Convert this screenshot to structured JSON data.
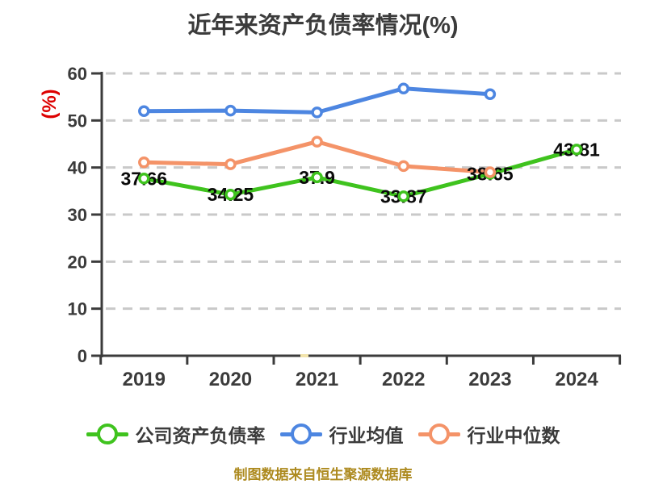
{
  "title": {
    "text": "近年来资产负债率情况(%)",
    "color": "#3B3B3B"
  },
  "y_axis_label": {
    "text": "(%)",
    "color": "#DD0000"
  },
  "caption": {
    "text": "制图数据来自恒生聚源数据库",
    "color": "#AD8A1F"
  },
  "chart_data": {
    "type": "line",
    "title": "近年来资产负债率情况(%)",
    "categories": [
      "2019",
      "2020",
      "2021",
      "2022",
      "2023",
      "2024"
    ],
    "series": [
      {
        "key": "company",
        "name": "公司资产负债率",
        "color": "#3FC31E",
        "values": [
          37.66,
          34.25,
          37.9,
          33.87,
          38.65,
          43.81
        ],
        "point_labels": [
          "37.66",
          "34.25",
          "37.9",
          "33.87",
          "38.65",
          "43.81"
        ]
      },
      {
        "key": "industry-avg",
        "name": "行业均值",
        "color": "#4D86E1",
        "values": [
          52.0,
          52.1,
          51.7,
          56.8,
          55.6
        ],
        "point_labels": []
      },
      {
        "key": "industry-median",
        "name": "行业中位数",
        "color": "#F49368",
        "values": [
          41.1,
          40.7,
          45.5,
          40.3,
          39.0
        ],
        "point_labels": []
      }
    ],
    "ylim": [
      0,
      60
    ],
    "yticks": [
      0,
      10,
      20,
      30,
      40,
      50,
      60
    ],
    "grid": {
      "horizontal": "dashed",
      "color": "#C9C9C9"
    },
    "axis_color": "#3B3B3B",
    "tick_label_color": "#3B3B3B",
    "data_label_color": "#0A0A0A",
    "marker_style": "white-filled circle with colored ring",
    "legend_position": "bottom",
    "axis_highlight_dash_color": "#F2E4AC"
  }
}
